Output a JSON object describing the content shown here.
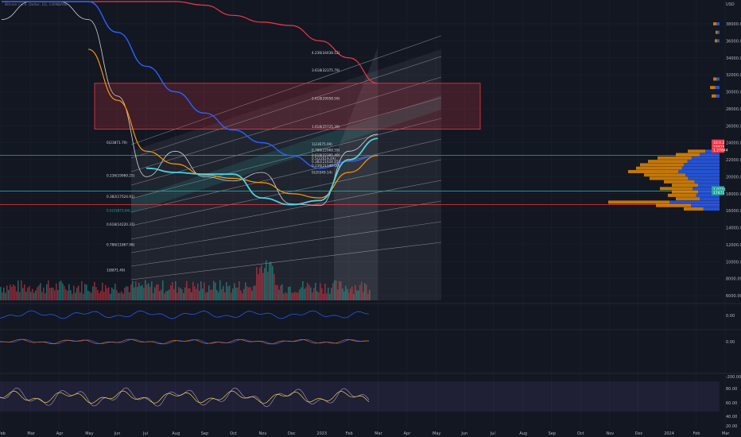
{
  "header": {
    "symbol": "Bitcoin / U.S. Dollar, 1D, COINBASE"
  },
  "colors": {
    "bg": "#131722",
    "ma_blue": "#2962ff",
    "ma_red": "#f23645",
    "ma_orange": "#ff9800",
    "ma_teal": "#4dd0e1",
    "zone": "#f23645",
    "macd": "#2962ff",
    "rsi": "#b39ddb"
  },
  "chart_data": {
    "type": "line",
    "price_axis": {
      "ticks": [
        "USD",
        "38000.00",
        "36000.00",
        "34000.00",
        "32000.00",
        "30000.00",
        "28000.00",
        "26000.00",
        "24000.00",
        "22000.00",
        "20000.00",
        "18000.00",
        "16000.00",
        "14000.00",
        "12000.00",
        "10000.00",
        "8000.00",
        "6000.00"
      ]
    },
    "time_axis": {
      "ticks": [
        "Feb",
        "Mar",
        "Apr",
        "May",
        "Jun",
        "Jul",
        "Aug",
        "Sep",
        "Oct",
        "Nov",
        "Dec",
        "2023",
        "Feb",
        "Mar",
        "Apr",
        "May",
        "Jun",
        "Jul",
        "Aug",
        "Sep",
        "Oct",
        "Nov",
        "Dec",
        "2024",
        "Feb",
        "Mar"
      ]
    },
    "fib_retracement": [
      {
        "label": "0(23871.79)",
        "price": 23871.79
      },
      {
        "label": "0.236(19969.25)",
        "price": 19969.25
      },
      {
        "label": "0.382(17524.91)",
        "price": 17524.91
      },
      {
        "label": "0.5(15873.64)",
        "price": 15873.64
      },
      {
        "label": "0.618(14220.37)",
        "price": 14220.37
      },
      {
        "label": "0.786(11867.98)",
        "price": 11867.98
      },
      {
        "label": "1(8871.49)",
        "price": 8871.49
      }
    ],
    "fib_extension": [
      {
        "label": "4.236(34438.12)",
        "price": 34438.12
      },
      {
        "label": "3.618(32375.79)",
        "price": 32375.79
      },
      {
        "label": "2.618(29058.59)",
        "price": 29058.59
      },
      {
        "label": "1.618(25725.39)",
        "price": 25725.39
      },
      {
        "label": "1(23675.09)",
        "price": 23675.09
      },
      {
        "label": "0.786(22968.59)",
        "price": 22968.59
      },
      {
        "label": "0.618(22385.40)",
        "price": 22385.4
      },
      {
        "label": "0.5(22019.49)",
        "price": 22019.49
      },
      {
        "label": "0.382(21628.15)",
        "price": 21628.15
      },
      {
        "label": "0.236(21140.00)",
        "price": 21140.0
      },
      {
        "label": "0(20349.14)",
        "price": 20349.14
      }
    ],
    "resistance_zone": {
      "from": 25600,
      "to": 31000
    },
    "horizontal_levels": [
      22500,
      18300,
      16700
    ],
    "price_badges": [
      {
        "label": "33.0.2",
        "price": 24000
      },
      {
        "label": "23425",
        "price": 23500
      },
      {
        "label": "1.27644",
        "price": 23100
      },
      {
        "label": "1.0774",
        "price": 18500
      },
      {
        "label": "17471",
        "price": 18100
      }
    ],
    "series": [
      {
        "kind": "price",
        "x": [
          "Feb",
          "Mar",
          "Apr",
          "May",
          "Jun",
          "Jul",
          "Aug",
          "Sep",
          "Oct",
          "Nov",
          "Dec",
          "2023",
          "Feb",
          "Mar"
        ],
        "values": [
          38500,
          41000,
          43000,
          38500,
          29500,
          20000,
          23000,
          20000,
          19500,
          20500,
          16800,
          16600,
          23000,
          25000
        ]
      },
      {
        "kind": "ma_red",
        "x": [
          "Feb",
          "Mar",
          "Apr",
          "May",
          "Jun",
          "Jul",
          "Aug",
          "Sep",
          "Oct",
          "Nov",
          "Dec",
          "2023",
          "Feb",
          "Mar"
        ],
        "values": [
          52000,
          51000,
          48500,
          45500,
          43500,
          42000,
          41000,
          40200,
          39000,
          38200,
          37800,
          36000,
          34000,
          31000
        ]
      },
      {
        "kind": "ma_blue",
        "x": [
          "Feb",
          "Mar",
          "Apr",
          "May",
          "Jun",
          "Jul",
          "Aug",
          "Sep",
          "Oct",
          "Nov",
          "Dec",
          "2023",
          "Feb",
          "Mar"
        ],
        "values": [
          48000,
          46000,
          44000,
          41000,
          37000,
          33000,
          30000,
          27500,
          25500,
          24000,
          22500,
          21000,
          21800,
          22500
        ]
      },
      {
        "kind": "ma_orange",
        "x": [
          "May",
          "Jun",
          "Jul",
          "Aug",
          "Sep",
          "Oct",
          "Nov",
          "Dec",
          "2023",
          "Feb",
          "Mar"
        ],
        "values": [
          35000,
          29000,
          23000,
          21500,
          20200,
          19800,
          19300,
          18000,
          17500,
          20500,
          22500
        ]
      },
      {
        "kind": "ma_teal",
        "x": [
          "Jul",
          "Aug",
          "Sep",
          "Oct",
          "Nov",
          "Dec",
          "2023",
          "Feb",
          "Mar"
        ],
        "values": [
          21000,
          20500,
          20300,
          20300,
          17500,
          16700,
          17200,
          22000,
          24500
        ]
      }
    ],
    "volume_profile_side": "right",
    "panes": [
      {
        "name": "oscillator",
        "ticks": [
          "0.00"
        ]
      },
      {
        "name": "macd",
        "ticks": [
          "0.00",
          "-200.00"
        ]
      },
      {
        "name": "rsi",
        "ticks": [
          "80.00",
          "60.00",
          "40.00",
          "20.00"
        ]
      }
    ],
    "grid": true
  }
}
